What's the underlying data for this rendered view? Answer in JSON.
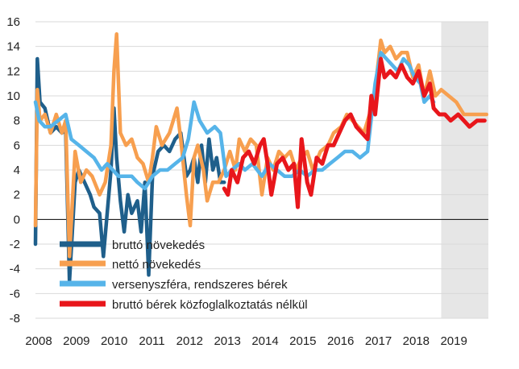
{
  "chart_data": {
    "type": "line",
    "title": "",
    "xlabel": "",
    "ylabel": "",
    "ylim": [
      -8,
      16
    ],
    "yticks": [
      -8,
      -6,
      -4,
      -2,
      0,
      2,
      4,
      6,
      8,
      10,
      12,
      14,
      16
    ],
    "xlim": [
      2008,
      2020
    ],
    "xticks": [
      "2008",
      "2009",
      "2010",
      "2011",
      "2012",
      "2013",
      "2014",
      "2015",
      "2016",
      "2017",
      "2018",
      "2019"
    ],
    "forecast_shading": {
      "from": 2018.75,
      "to": 2020,
      "color": "#e6e6e6"
    },
    "grid": "horizontal",
    "legend_position": "bottom-left",
    "series": [
      {
        "name": "bruttó növekedés",
        "color": "#1f5f8b",
        "points": [
          [
            2008.0,
            -2.0
          ],
          [
            2008.05,
            13.0
          ],
          [
            2008.12,
            9.5
          ],
          [
            2008.25,
            9.0
          ],
          [
            2008.4,
            7.0
          ],
          [
            2008.55,
            7.5
          ],
          [
            2008.7,
            7.0
          ],
          [
            2008.8,
            7.2
          ],
          [
            2008.9,
            -5.0
          ],
          [
            2009.05,
            3.0
          ],
          [
            2009.15,
            4.0
          ],
          [
            2009.3,
            3.0
          ],
          [
            2009.45,
            2.0
          ],
          [
            2009.55,
            1.0
          ],
          [
            2009.7,
            0.5
          ],
          [
            2009.8,
            -3.0
          ],
          [
            2009.9,
            0.5
          ],
          [
            2010.0,
            4.0
          ],
          [
            2010.08,
            9.0
          ],
          [
            2010.15,
            5.0
          ],
          [
            2010.25,
            1.5
          ],
          [
            2010.35,
            -1.0
          ],
          [
            2010.45,
            2.0
          ],
          [
            2010.55,
            0.5
          ],
          [
            2010.7,
            1.5
          ],
          [
            2010.8,
            -1.0
          ],
          [
            2010.9,
            3.0
          ],
          [
            2011.0,
            -4.5
          ],
          [
            2011.1,
            3.5
          ],
          [
            2011.25,
            5.5
          ],
          [
            2011.4,
            6.0
          ],
          [
            2011.55,
            5.5
          ],
          [
            2011.7,
            6.5
          ],
          [
            2011.85,
            7.0
          ],
          [
            2012.0,
            3.5
          ],
          [
            2012.1,
            4.0
          ],
          [
            2012.2,
            5.0
          ],
          [
            2012.3,
            3.0
          ],
          [
            2012.4,
            6.0
          ],
          [
            2012.5,
            3.0
          ],
          [
            2012.6,
            6.5
          ],
          [
            2012.7,
            4.0
          ],
          [
            2012.8,
            5.0
          ],
          [
            2012.9,
            3.0
          ],
          [
            2013.0,
            3.0
          ]
        ]
      },
      {
        "name": "nettó növekedés",
        "color": "#f79f4f",
        "points": [
          [
            2008.0,
            -0.5
          ],
          [
            2008.05,
            10.5
          ],
          [
            2008.12,
            8.0
          ],
          [
            2008.25,
            8.5
          ],
          [
            2008.4,
            7.0
          ],
          [
            2008.55,
            8.5
          ],
          [
            2008.7,
            7.0
          ],
          [
            2008.8,
            8.0
          ],
          [
            2008.9,
            -3.0
          ],
          [
            2009.05,
            5.5
          ],
          [
            2009.2,
            3.0
          ],
          [
            2009.35,
            4.0
          ],
          [
            2009.5,
            3.5
          ],
          [
            2009.7,
            2.0
          ],
          [
            2009.85,
            3.0
          ],
          [
            2010.0,
            6.0
          ],
          [
            2010.08,
            12.0
          ],
          [
            2010.15,
            15.0
          ],
          [
            2010.25,
            7.0
          ],
          [
            2010.4,
            6.0
          ],
          [
            2010.55,
            6.5
          ],
          [
            2010.7,
            5.0
          ],
          [
            2010.85,
            4.5
          ],
          [
            2011.0,
            3.0
          ],
          [
            2011.1,
            5.0
          ],
          [
            2011.2,
            7.5
          ],
          [
            2011.35,
            6.0
          ],
          [
            2011.55,
            7.0
          ],
          [
            2011.75,
            9.0
          ],
          [
            2011.85,
            6.5
          ],
          [
            2012.0,
            2.0
          ],
          [
            2012.1,
            -0.5
          ],
          [
            2012.2,
            5.0
          ],
          [
            2012.3,
            6.0
          ],
          [
            2012.45,
            4.0
          ],
          [
            2012.55,
            1.5
          ],
          [
            2012.7,
            3.0
          ],
          [
            2012.85,
            3.0
          ],
          [
            2013.0,
            4.0
          ],
          [
            2013.15,
            5.5
          ],
          [
            2013.3,
            4.0
          ],
          [
            2013.4,
            6.5
          ],
          [
            2013.55,
            5.5
          ],
          [
            2013.7,
            6.5
          ],
          [
            2013.85,
            6.0
          ],
          [
            2014.0,
            2.0
          ],
          [
            2014.15,
            5.0
          ],
          [
            2014.3,
            4.0
          ],
          [
            2014.45,
            5.5
          ],
          [
            2014.6,
            5.0
          ],
          [
            2014.75,
            5.5
          ],
          [
            2014.9,
            4.0
          ],
          [
            2015.05,
            5.0
          ],
          [
            2015.2,
            5.5
          ],
          [
            2015.35,
            4.0
          ],
          [
            2015.55,
            5.5
          ],
          [
            2015.75,
            6.0
          ],
          [
            2015.9,
            7.0
          ],
          [
            2016.1,
            7.5
          ],
          [
            2016.25,
            8.5
          ],
          [
            2016.4,
            8.0
          ],
          [
            2016.55,
            7.5
          ],
          [
            2016.7,
            7.0
          ],
          [
            2016.85,
            8.5
          ],
          [
            2017.0,
            10.5
          ],
          [
            2017.15,
            14.5
          ],
          [
            2017.25,
            13.5
          ],
          [
            2017.4,
            14.0
          ],
          [
            2017.55,
            13.0
          ],
          [
            2017.7,
            13.5
          ],
          [
            2017.85,
            13.5
          ],
          [
            2018.0,
            11.5
          ],
          [
            2018.15,
            12.5
          ],
          [
            2018.3,
            10.0
          ],
          [
            2018.45,
            12.0
          ],
          [
            2018.6,
            10.0
          ],
          [
            2018.75,
            10.5
          ],
          [
            2018.95,
            10.0
          ],
          [
            2019.15,
            9.5
          ],
          [
            2019.35,
            8.5
          ],
          [
            2019.55,
            8.5
          ],
          [
            2019.75,
            8.5
          ],
          [
            2019.95,
            8.5
          ]
        ]
      },
      {
        "name": "versenyszféra, rendszeres bérek",
        "color": "#56b4e9",
        "points": [
          [
            2008.0,
            9.5
          ],
          [
            2008.1,
            8.0
          ],
          [
            2008.25,
            7.5
          ],
          [
            2008.4,
            7.5
          ],
          [
            2008.6,
            8.0
          ],
          [
            2008.8,
            8.5
          ],
          [
            2008.95,
            6.5
          ],
          [
            2009.15,
            6.0
          ],
          [
            2009.35,
            5.5
          ],
          [
            2009.55,
            5.0
          ],
          [
            2009.75,
            4.0
          ],
          [
            2009.9,
            4.5
          ],
          [
            2010.05,
            4.0
          ],
          [
            2010.2,
            3.5
          ],
          [
            2010.4,
            3.5
          ],
          [
            2010.55,
            3.5
          ],
          [
            2010.7,
            3.0
          ],
          [
            2010.9,
            2.5
          ],
          [
            2011.1,
            3.5
          ],
          [
            2011.3,
            4.0
          ],
          [
            2011.5,
            4.0
          ],
          [
            2011.7,
            4.5
          ],
          [
            2011.9,
            5.0
          ],
          [
            2012.05,
            6.5
          ],
          [
            2012.2,
            9.5
          ],
          [
            2012.35,
            8.0
          ],
          [
            2012.55,
            7.0
          ],
          [
            2012.75,
            7.5
          ],
          [
            2012.9,
            7.0
          ],
          [
            2013.05,
            3.5
          ],
          [
            2013.2,
            4.0
          ],
          [
            2013.4,
            4.5
          ],
          [
            2013.55,
            4.0
          ],
          [
            2013.75,
            4.5
          ],
          [
            2014.0,
            3.5
          ],
          [
            2014.2,
            4.5
          ],
          [
            2014.4,
            4.0
          ],
          [
            2014.6,
            3.5
          ],
          [
            2014.8,
            3.5
          ],
          [
            2015.0,
            4.0
          ],
          [
            2015.2,
            3.5
          ],
          [
            2015.4,
            4.0
          ],
          [
            2015.6,
            4.0
          ],
          [
            2015.8,
            4.5
          ],
          [
            2016.0,
            5.0
          ],
          [
            2016.2,
            5.5
          ],
          [
            2016.4,
            5.5
          ],
          [
            2016.6,
            5.0
          ],
          [
            2016.8,
            5.5
          ],
          [
            2017.0,
            11.0
          ],
          [
            2017.15,
            13.5
          ],
          [
            2017.3,
            13.0
          ],
          [
            2017.45,
            12.5
          ],
          [
            2017.6,
            12.0
          ],
          [
            2017.75,
            13.0
          ],
          [
            2017.9,
            12.5
          ],
          [
            2018.05,
            11.5
          ],
          [
            2018.2,
            11.0
          ],
          [
            2018.3,
            9.5
          ],
          [
            2018.45,
            10.0
          ],
          [
            2018.55,
            9.5
          ]
        ]
      },
      {
        "name": "bruttó bérek közfoglalkoztatás nélkül",
        "color": "#e8161b",
        "points": [
          [
            2013.0,
            2.5
          ],
          [
            2013.1,
            2.0
          ],
          [
            2013.2,
            4.0
          ],
          [
            2013.35,
            3.0
          ],
          [
            2013.5,
            5.0
          ],
          [
            2013.65,
            5.5
          ],
          [
            2013.8,
            4.5
          ],
          [
            2013.95,
            6.0
          ],
          [
            2014.05,
            6.5
          ],
          [
            2014.15,
            4.5
          ],
          [
            2014.25,
            2.0
          ],
          [
            2014.4,
            4.5
          ],
          [
            2014.55,
            5.0
          ],
          [
            2014.7,
            4.0
          ],
          [
            2014.85,
            4.5
          ],
          [
            2014.95,
            1.0
          ],
          [
            2015.05,
            6.5
          ],
          [
            2015.2,
            3.0
          ],
          [
            2015.3,
            2.0
          ],
          [
            2015.45,
            5.0
          ],
          [
            2015.6,
            4.5
          ],
          [
            2015.75,
            6.0
          ],
          [
            2015.9,
            6.0
          ],
          [
            2016.05,
            7.0
          ],
          [
            2016.2,
            8.0
          ],
          [
            2016.35,
            8.5
          ],
          [
            2016.5,
            7.5
          ],
          [
            2016.65,
            7.0
          ],
          [
            2016.8,
            6.5
          ],
          [
            2016.9,
            10.0
          ],
          [
            2017.0,
            8.5
          ],
          [
            2017.15,
            13.0
          ],
          [
            2017.25,
            11.5
          ],
          [
            2017.4,
            12.0
          ],
          [
            2017.55,
            11.5
          ],
          [
            2017.7,
            12.5
          ],
          [
            2017.85,
            11.5
          ],
          [
            2018.0,
            11.0
          ],
          [
            2018.15,
            12.0
          ],
          [
            2018.3,
            10.0
          ],
          [
            2018.45,
            11.0
          ],
          [
            2018.55,
            9.0
          ],
          [
            2018.7,
            8.5
          ],
          [
            2018.85,
            8.5
          ],
          [
            2019.0,
            8.0
          ],
          [
            2019.2,
            8.5
          ],
          [
            2019.35,
            8.0
          ],
          [
            2019.5,
            7.5
          ],
          [
            2019.7,
            8.0
          ],
          [
            2019.9,
            8.0
          ]
        ]
      }
    ]
  }
}
